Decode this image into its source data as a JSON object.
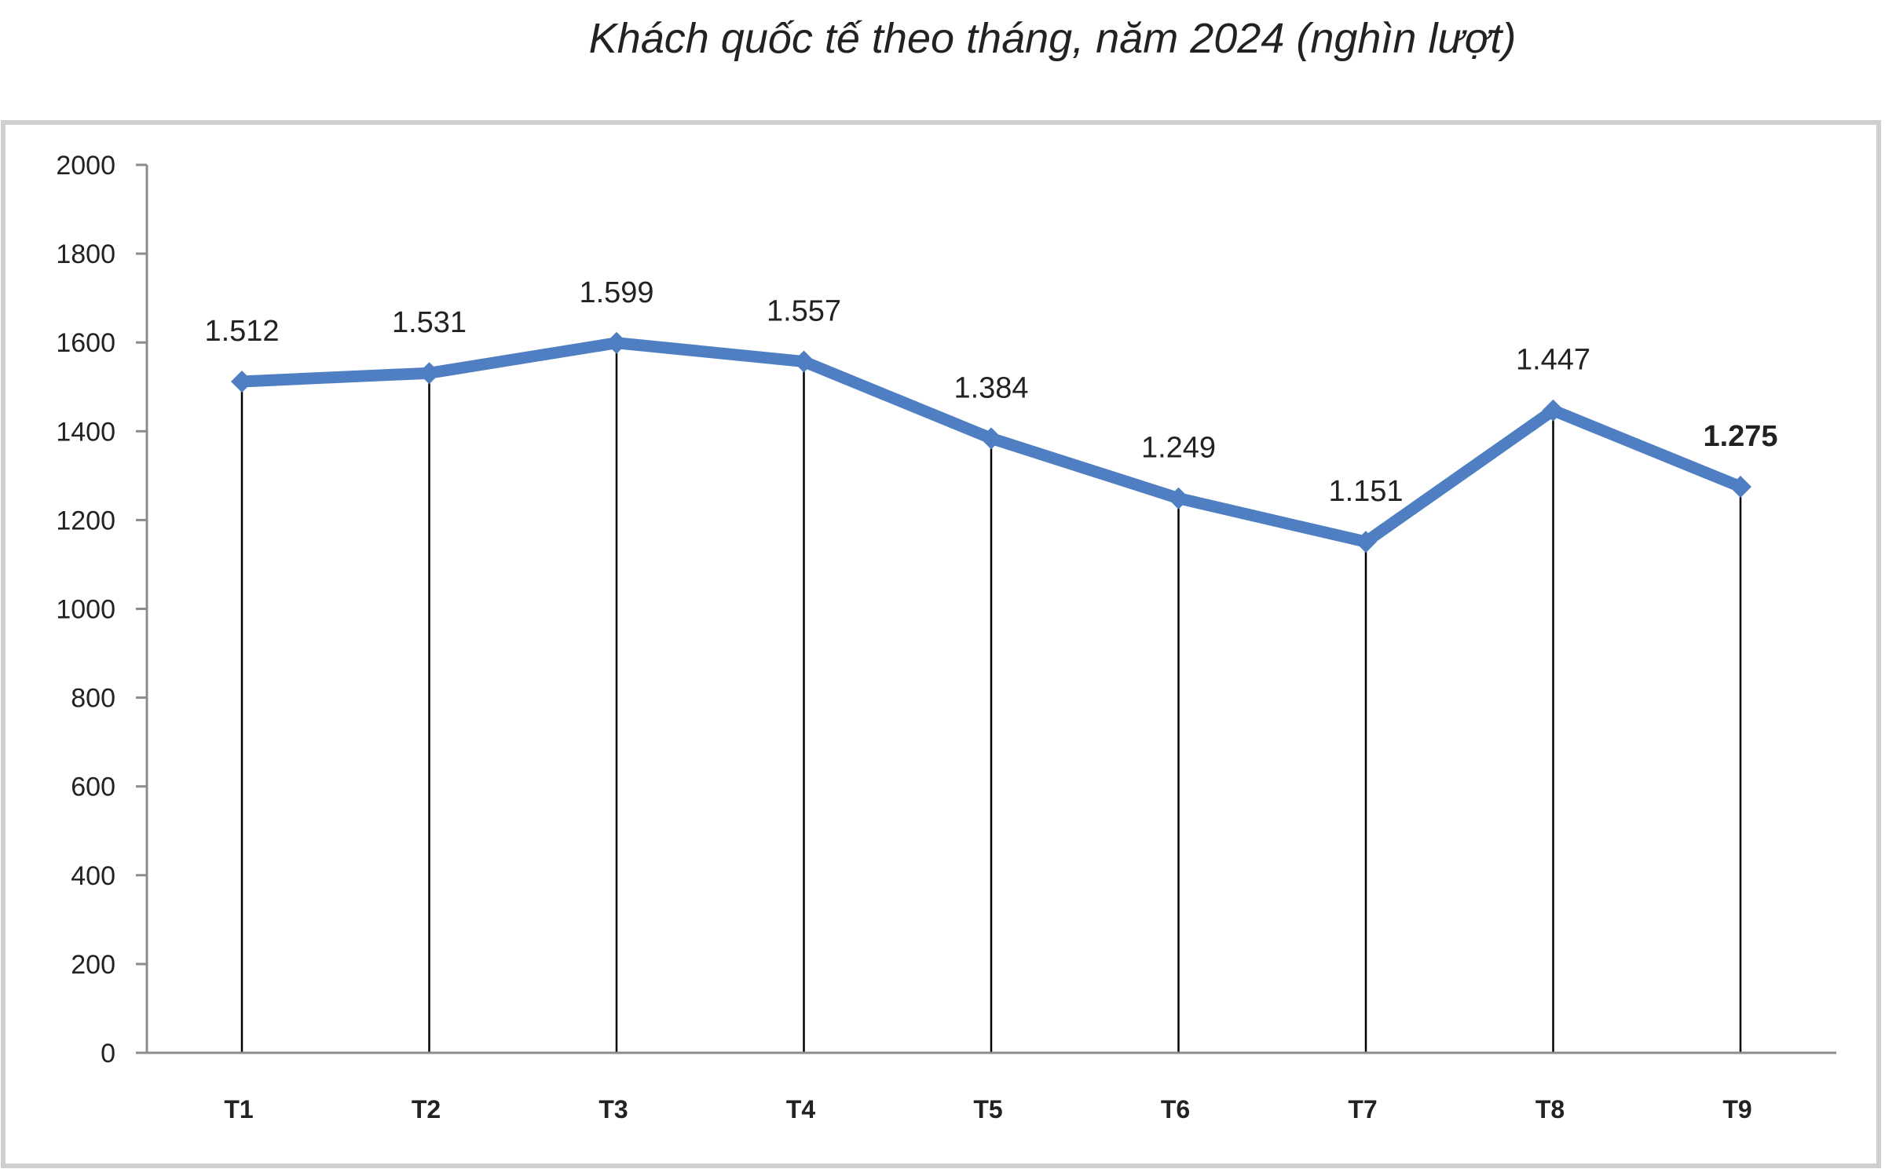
{
  "chart_data": {
    "type": "line",
    "title": "Khách quốc tế theo tháng, năm 2024 (nghìn lượt)",
    "xlabel": "",
    "ylabel": "",
    "categories": [
      "T1",
      "T2",
      "T3",
      "T4",
      "T5",
      "T6",
      "T7",
      "T8",
      "T9"
    ],
    "series": [
      {
        "values": [
          1512,
          1531,
          1599,
          1557,
          1384,
          1249,
          1151,
          1447,
          1275
        ],
        "data_labels": [
          "1.512",
          "1.531",
          "1.599",
          "1.557",
          "1.384",
          "1.249",
          "1.151",
          "1.447",
          "1.275"
        ],
        "bold_labels": [
          false,
          false,
          false,
          false,
          false,
          false,
          false,
          false,
          true
        ],
        "color": "#4f7fc2",
        "marker": "diamond"
      }
    ],
    "ylim": [
      0,
      2000
    ],
    "yticks": [
      0,
      200,
      400,
      600,
      800,
      1000,
      1200,
      1400,
      1600,
      1800,
      2000
    ],
    "grid": false,
    "drop_lines": true,
    "legend": "none",
    "frame_color": "#cfcfcf"
  }
}
